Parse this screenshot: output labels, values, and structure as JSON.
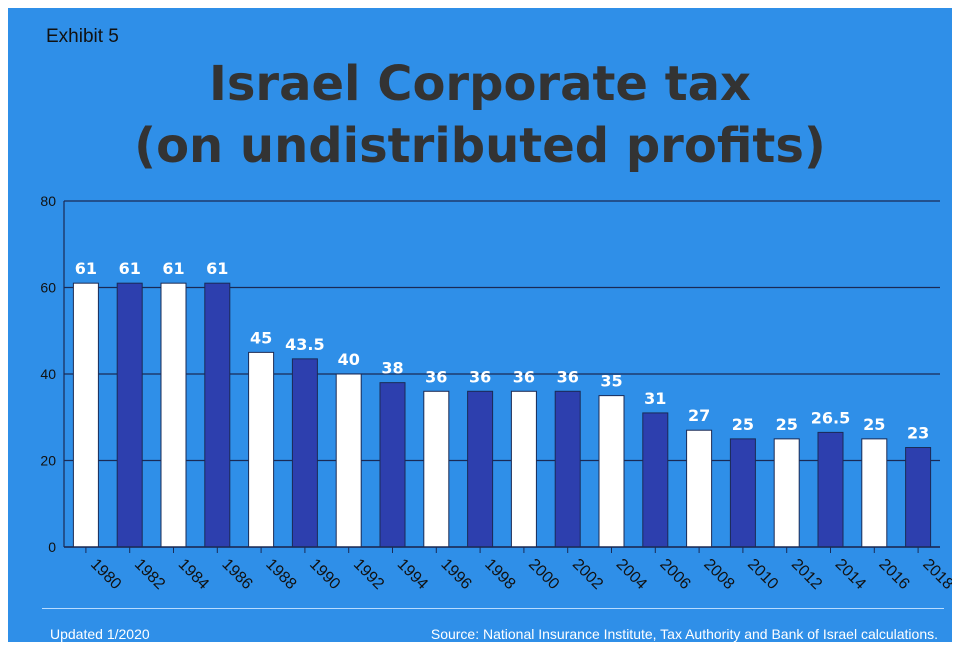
{
  "exhibit_label": "Exhibit 5",
  "title_line1": "Israel Corporate tax",
  "title_line2": "(on undistributed profits)",
  "footer": {
    "updated": "Updated 1/2020",
    "source": "Source: National Insurance Institute, Tax Authority and Bank of Israel calculations."
  },
  "chart_data": {
    "type": "bar",
    "categories": [
      "1980",
      "1982",
      "1984",
      "1986",
      "1988",
      "1990",
      "1992",
      "1994",
      "1996",
      "1998",
      "2000",
      "2002",
      "2004",
      "2006",
      "2008",
      "2010",
      "2012",
      "2014",
      "2016",
      "2018"
    ],
    "values": [
      61,
      61,
      61,
      61,
      45,
      43.5,
      40,
      38,
      36,
      36,
      36,
      36,
      35,
      31,
      27,
      25,
      25,
      26.5,
      25,
      23
    ],
    "data_labels": [
      "61",
      "61",
      "61",
      "61",
      "45",
      "43.5",
      "40",
      "38",
      "36",
      "36",
      "36",
      "36",
      "35",
      "31",
      "27",
      "25",
      "25",
      "26.5",
      "25",
      "23"
    ],
    "yticks": [
      0,
      20,
      40,
      60,
      80
    ],
    "ylim": [
      0,
      80
    ],
    "grid": true,
    "bar_colors": [
      "#ffffff",
      "#2d3fae"
    ],
    "background": "#2f8fe8"
  }
}
